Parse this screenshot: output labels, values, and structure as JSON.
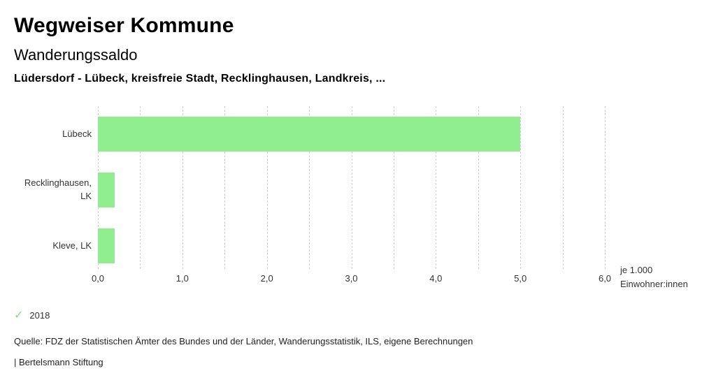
{
  "header": {
    "title": "Wegweiser Kommune",
    "subtitle": "Wanderungssaldo",
    "context": "Lüdersdorf - Lübeck, kreisfreie Stadt, Recklinghausen, Landkreis, ..."
  },
  "chart_data": {
    "type": "bar",
    "orientation": "horizontal",
    "categories": [
      "Lübeck",
      "Recklinghausen, LK",
      "Kleve, LK"
    ],
    "values": [
      5.0,
      0.2,
      0.2
    ],
    "series_name": "2018",
    "xlim": [
      0,
      6
    ],
    "x_tick_values": [
      0,
      1,
      2,
      3,
      4,
      5,
      6
    ],
    "x_ticks": [
      "0,0",
      "1,0",
      "2,0",
      "3,0",
      "4,0",
      "5,0",
      "6,0"
    ],
    "gridline_step": 0.5,
    "grid": "dashed-vertical",
    "unit_label_line1": "je 1.000",
    "unit_label_line2": "Einwohner:innen",
    "bar_color": "#90ee90"
  },
  "legend": {
    "check_icon": "✓",
    "check_color": "#84d984",
    "label": "2018"
  },
  "footer": {
    "source": "Quelle: FDZ der Statistischen Ämter des Bundes und der Länder, Wanderungsstatistik, ILS, eigene Berechnungen",
    "attribution": "| Bertelsmann Stiftung"
  }
}
